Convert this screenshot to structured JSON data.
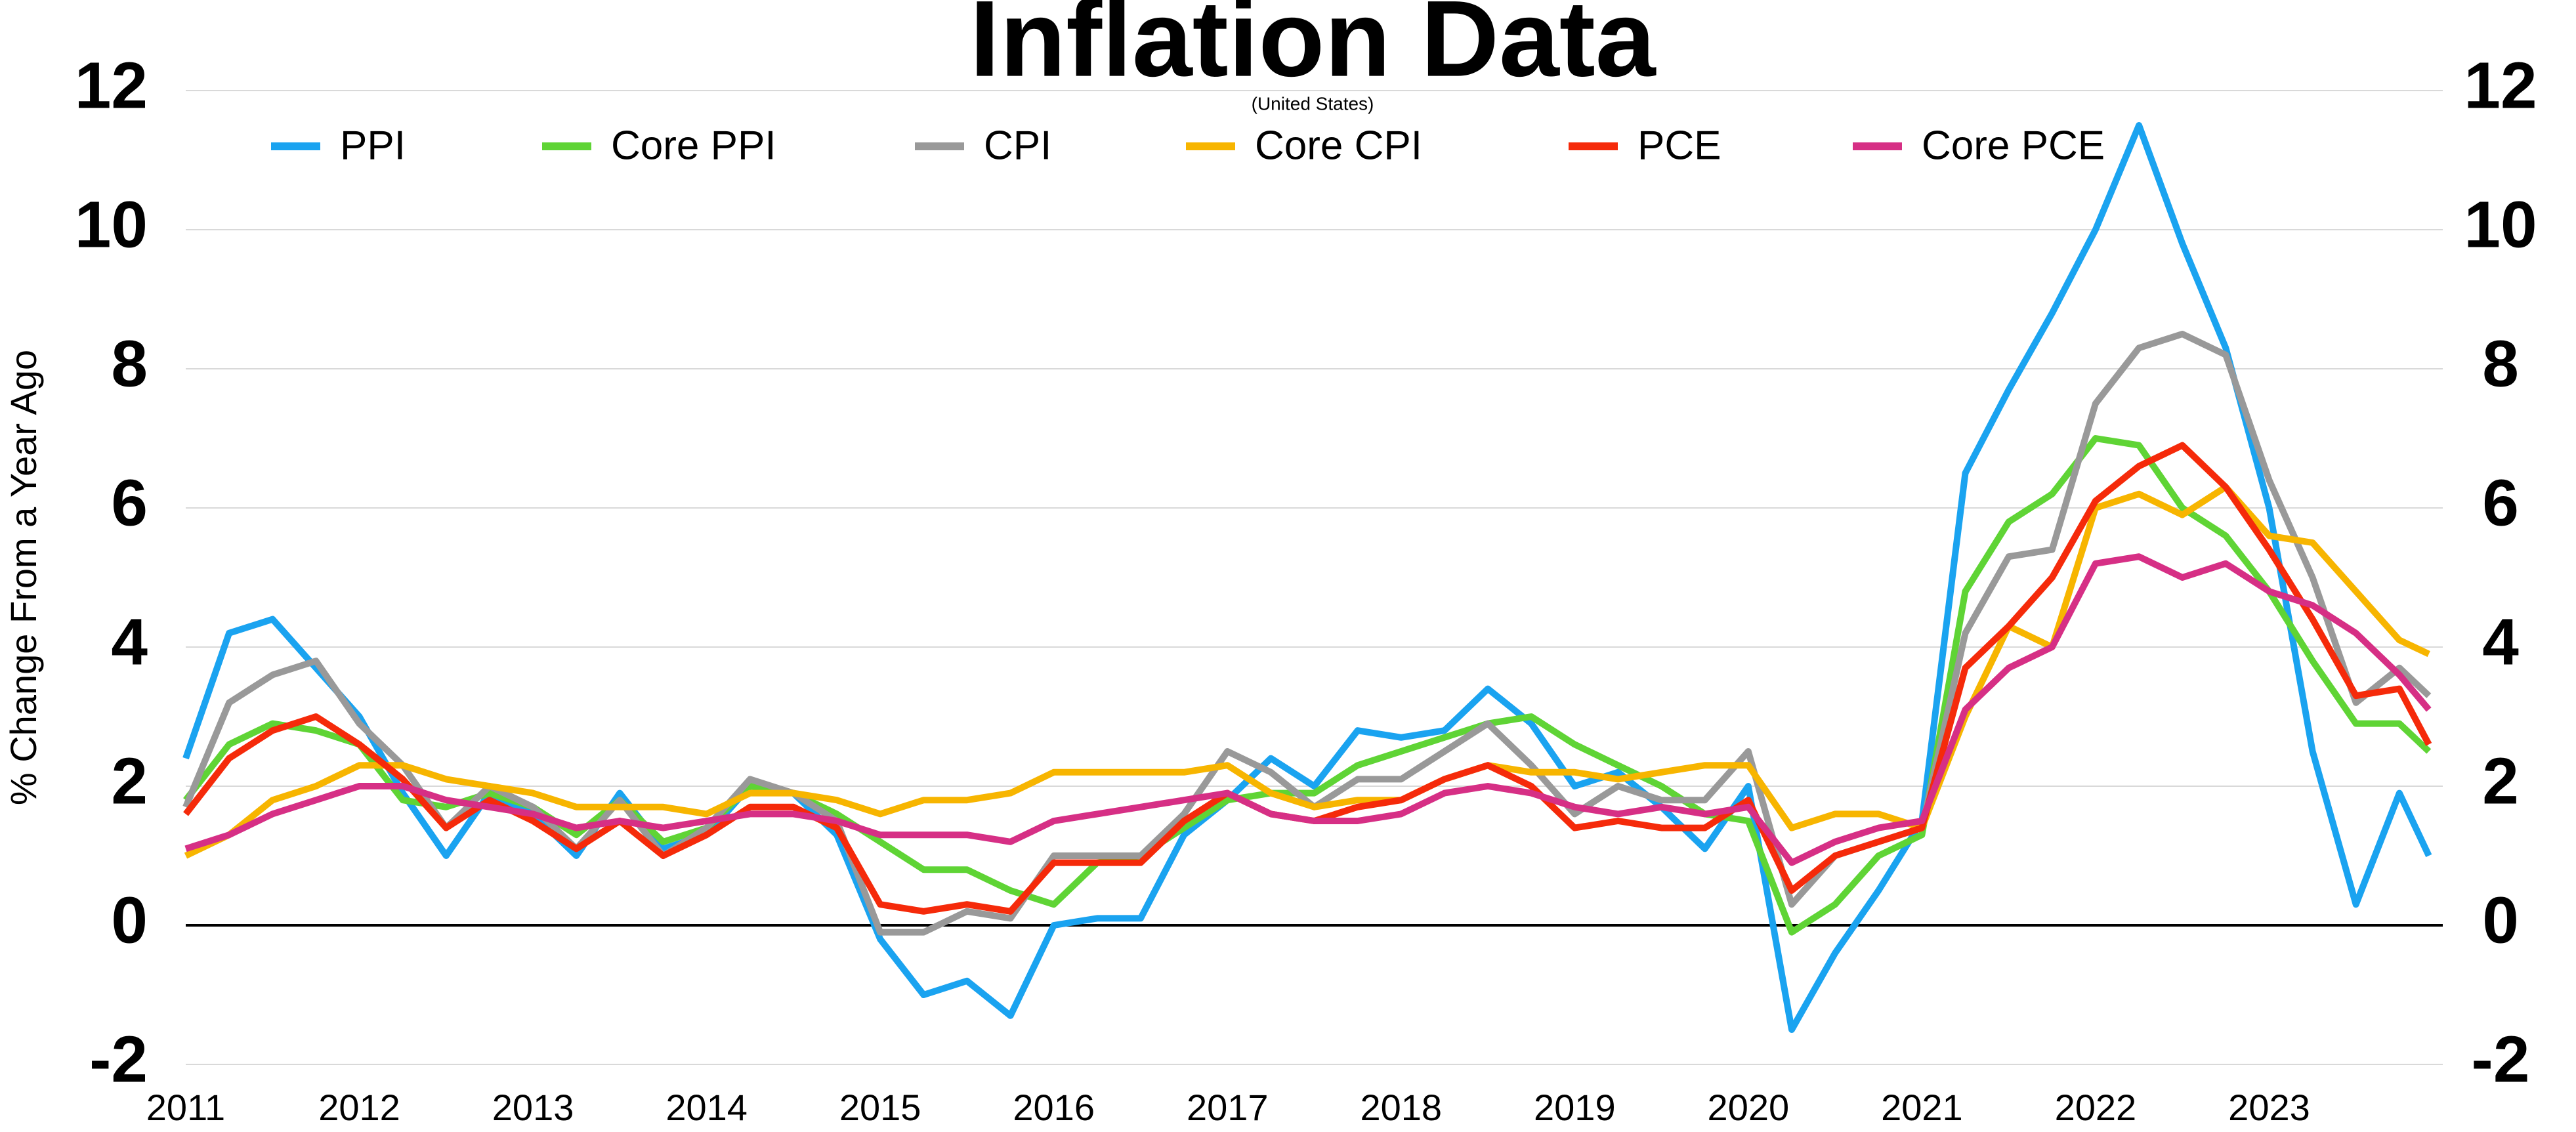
{
  "chart_data": {
    "type": "line",
    "title": "Inflation Data",
    "subtitle": "(United States)",
    "y_label": "% Change From a Year Ago",
    "x": [
      2011,
      2011.25,
      2011.5,
      2011.75,
      2012,
      2012.25,
      2012.5,
      2012.75,
      2013,
      2013.25,
      2013.5,
      2013.75,
      2014,
      2014.25,
      2014.5,
      2014.75,
      2015,
      2015.25,
      2015.5,
      2015.75,
      2016,
      2016.25,
      2016.5,
      2016.75,
      2017,
      2017.25,
      2017.5,
      2017.75,
      2018,
      2018.25,
      2018.5,
      2018.75,
      2019,
      2019.25,
      2019.5,
      2019.75,
      2020,
      2020.25,
      2020.5,
      2020.75,
      2021,
      2021.25,
      2021.5,
      2021.75,
      2022,
      2022.25,
      2022.5,
      2022.75,
      2023,
      2023.25,
      2023.5,
      2023.75,
      2023.92
    ],
    "series": [
      {
        "name": "PPI",
        "color": "#1aa3f0",
        "values": [
          2.4,
          4.2,
          4.4,
          3.7,
          3.0,
          1.9,
          1.0,
          1.9,
          1.6,
          1.0,
          1.9,
          1.1,
          1.3,
          2.0,
          1.9,
          1.3,
          -0.2,
          -1.0,
          -0.8,
          -1.3,
          0.0,
          0.1,
          0.1,
          1.3,
          1.8,
          2.4,
          2.0,
          2.8,
          2.7,
          2.8,
          3.4,
          2.9,
          2.0,
          2.2,
          1.7,
          1.1,
          2.0,
          -1.5,
          -0.4,
          0.5,
          1.5,
          6.5,
          7.7,
          8.8,
          10.0,
          11.5,
          9.8,
          8.3,
          6.0,
          2.5,
          0.3,
          1.9,
          1.0
        ]
      },
      {
        "name": "Core PPI",
        "color": "#5fd435",
        "values": [
          1.8,
          2.6,
          2.9,
          2.8,
          2.6,
          1.8,
          1.7,
          1.9,
          1.7,
          1.3,
          1.8,
          1.2,
          1.4,
          2.0,
          1.9,
          1.6,
          1.2,
          0.8,
          0.8,
          0.5,
          0.3,
          0.9,
          1.0,
          1.4,
          1.8,
          1.9,
          1.9,
          2.3,
          2.5,
          2.7,
          2.9,
          3.0,
          2.6,
          2.3,
          2.0,
          1.6,
          1.5,
          -0.1,
          0.3,
          1.0,
          1.3,
          4.8,
          5.8,
          6.2,
          7.0,
          6.9,
          6.0,
          5.6,
          4.8,
          3.8,
          2.9,
          2.9,
          2.5
        ]
      },
      {
        "name": "CPI",
        "color": "#999999",
        "values": [
          1.7,
          3.2,
          3.6,
          3.8,
          2.9,
          2.3,
          1.4,
          2.0,
          1.7,
          1.1,
          1.8,
          1.0,
          1.4,
          2.1,
          1.9,
          1.5,
          -0.1,
          -0.1,
          0.2,
          0.1,
          1.0,
          1.0,
          1.0,
          1.6,
          2.5,
          2.2,
          1.7,
          2.1,
          2.1,
          2.5,
          2.9,
          2.3,
          1.6,
          2.0,
          1.8,
          1.8,
          2.5,
          0.3,
          1.0,
          1.2,
          1.4,
          4.2,
          5.3,
          5.4,
          7.5,
          8.3,
          8.5,
          8.2,
          6.4,
          5.0,
          3.2,
          3.7,
          3.3
        ]
      },
      {
        "name": "Core CPI",
        "color": "#f7b500",
        "values": [
          1.0,
          1.3,
          1.8,
          2.0,
          2.3,
          2.3,
          2.1,
          2.0,
          1.9,
          1.7,
          1.7,
          1.7,
          1.6,
          1.9,
          1.9,
          1.8,
          1.6,
          1.8,
          1.8,
          1.9,
          2.2,
          2.2,
          2.2,
          2.2,
          2.3,
          1.9,
          1.7,
          1.8,
          1.8,
          2.1,
          2.3,
          2.2,
          2.2,
          2.1,
          2.2,
          2.3,
          2.3,
          1.4,
          1.6,
          1.6,
          1.4,
          3.0,
          4.3,
          4.0,
          6.0,
          6.2,
          5.9,
          6.3,
          5.6,
          5.5,
          4.8,
          4.1,
          3.9
        ]
      },
      {
        "name": "PCE",
        "color": "#f52a0a",
        "values": [
          1.6,
          2.4,
          2.8,
          3.0,
          2.6,
          2.1,
          1.4,
          1.8,
          1.5,
          1.1,
          1.5,
          1.0,
          1.3,
          1.7,
          1.7,
          1.4,
          0.3,
          0.2,
          0.3,
          0.2,
          0.9,
          0.9,
          0.9,
          1.5,
          1.9,
          1.6,
          1.5,
          1.7,
          1.8,
          2.1,
          2.3,
          2.0,
          1.4,
          1.5,
          1.4,
          1.4,
          1.8,
          0.5,
          1.0,
          1.2,
          1.4,
          3.7,
          4.3,
          5.0,
          6.1,
          6.6,
          6.9,
          6.3,
          5.4,
          4.4,
          3.3,
          3.4,
          2.6
        ]
      },
      {
        "name": "Core PCE",
        "color": "#d62f85",
        "values": [
          1.1,
          1.3,
          1.6,
          1.8,
          2.0,
          2.0,
          1.8,
          1.7,
          1.6,
          1.4,
          1.5,
          1.4,
          1.5,
          1.6,
          1.6,
          1.5,
          1.3,
          1.3,
          1.3,
          1.2,
          1.5,
          1.6,
          1.7,
          1.8,
          1.9,
          1.6,
          1.5,
          1.5,
          1.6,
          1.9,
          2.0,
          1.9,
          1.7,
          1.6,
          1.7,
          1.6,
          1.7,
          0.9,
          1.2,
          1.4,
          1.5,
          3.1,
          3.7,
          4.0,
          5.2,
          5.3,
          5.0,
          5.2,
          4.8,
          4.6,
          4.2,
          3.6,
          3.1
        ]
      }
    ],
    "xlim": [
      2011,
      2024
    ],
    "xticks": [
      2011,
      2012,
      2013,
      2014,
      2015,
      2016,
      2017,
      2018,
      2019,
      2020,
      2021,
      2022,
      2023
    ],
    "ylim": [
      -2,
      12
    ],
    "yticks": [
      -2,
      0,
      2,
      4,
      6,
      8,
      10,
      12
    ],
    "grid": true
  }
}
